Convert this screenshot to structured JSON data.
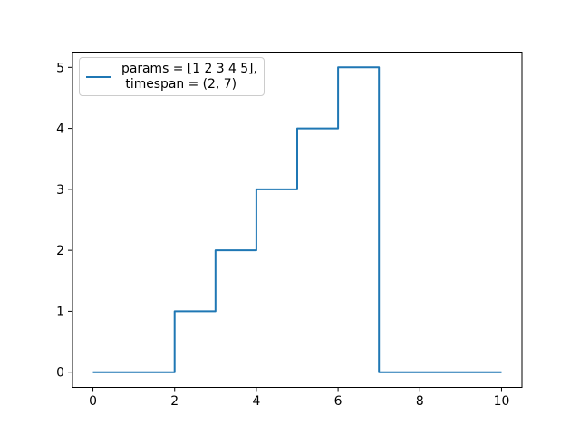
{
  "figure": {
    "background": "#ffffff",
    "title": ""
  },
  "chart_data": {
    "type": "line",
    "subtype": "step",
    "title": "",
    "xlabel": "",
    "ylabel": "",
    "x": [
      0,
      2,
      2,
      3,
      3,
      4,
      4,
      5,
      5,
      6,
      6,
      7,
      7,
      10
    ],
    "y": [
      0,
      0,
      1,
      1,
      2,
      2,
      3,
      3,
      4,
      4,
      5,
      5,
      0,
      0
    ],
    "xlim": [
      -0.5,
      10.5
    ],
    "ylim": [
      -0.25,
      5.25
    ],
    "xticks": [
      0,
      2,
      4,
      6,
      8,
      10
    ],
    "yticks": [
      0,
      1,
      2,
      3,
      4,
      5
    ],
    "grid": false,
    "line_color": "#1f77b4",
    "axis_color": "#000000",
    "legend": {
      "position": "upper left",
      "entries": [
        {
          "label": "params = [1 2 3 4 5],\n timespan = (2, 7)",
          "color": "#1f77b4"
        }
      ]
    }
  }
}
